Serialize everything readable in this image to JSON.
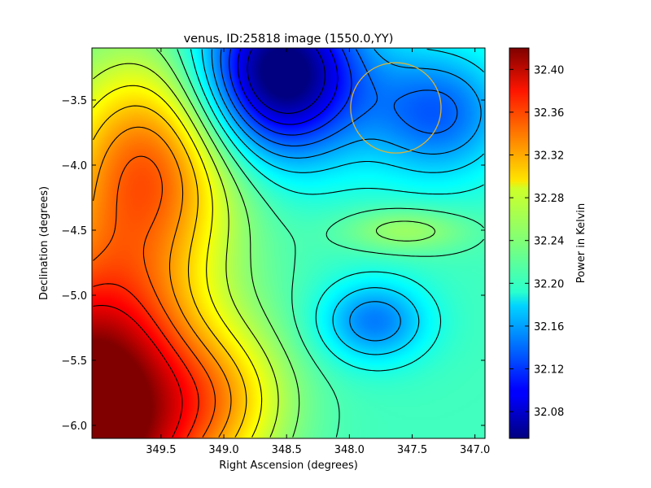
{
  "chart_data": {
    "type": "heatmap",
    "title": "venus, ID:25818 image (1550.0,YY)",
    "xlabel": "Right Ascension (degrees)",
    "ylabel": "Declination (degrees)",
    "xlim": [
      350.05,
      346.92
    ],
    "ylim": [
      -6.1,
      -3.1
    ],
    "x_ticks": [
      {
        "value": 349.5,
        "label": "349.5"
      },
      {
        "value": 349.0,
        "label": "349.0"
      },
      {
        "value": 348.5,
        "label": "348.5"
      },
      {
        "value": 348.0,
        "label": "348.0"
      },
      {
        "value": 347.5,
        "label": "347.5"
      },
      {
        "value": 347.0,
        "label": "347.0"
      }
    ],
    "y_ticks": [
      {
        "value": -3.5,
        "label": "−3.5"
      },
      {
        "value": -4.0,
        "label": "−4.0"
      },
      {
        "value": -4.5,
        "label": "−4.5"
      },
      {
        "value": -5.0,
        "label": "−5.0"
      },
      {
        "value": -5.5,
        "label": "−5.5"
      },
      {
        "value": -6.0,
        "label": "−6.0"
      }
    ],
    "colorbar": {
      "label": "Power in Kelvin",
      "range": [
        32.055,
        32.42
      ],
      "colormap": "jet",
      "ticks": [
        {
          "value": 32.08,
          "label": "32.08"
        },
        {
          "value": 32.12,
          "label": "32.12"
        },
        {
          "value": 32.16,
          "label": "32.16"
        },
        {
          "value": 32.2,
          "label": "32.20"
        },
        {
          "value": 32.24,
          "label": "32.24"
        },
        {
          "value": 32.28,
          "label": "32.28"
        },
        {
          "value": 32.32,
          "label": "32.32"
        },
        {
          "value": 32.36,
          "label": "32.36"
        },
        {
          "value": 32.4,
          "label": "32.40"
        }
      ]
    },
    "field_components": [
      {
        "kind": "base",
        "value": 32.215
      },
      {
        "kind": "gaussian",
        "ra": 350.05,
        "dec": -5.9,
        "amp": 0.25,
        "sigma_ra": 0.6,
        "sigma_dec": 0.8
      },
      {
        "kind": "gaussian",
        "ra": 349.6,
        "dec": -4.0,
        "amp": 0.12,
        "sigma_ra": 0.5,
        "sigma_dec": 0.6
      },
      {
        "kind": "gaussian",
        "ra": 348.55,
        "dec": -3.3,
        "amp": -0.18,
        "sigma_ra": 0.45,
        "sigma_dec": 0.45
      },
      {
        "kind": "gaussian",
        "ra": 347.8,
        "dec": -5.2,
        "amp": -0.07,
        "sigma_ra": 0.3,
        "sigma_dec": 0.22
      },
      {
        "kind": "gaussian",
        "ra": 347.55,
        "dec": -4.5,
        "amp": 0.035,
        "sigma_ra": 0.35,
        "sigma_dec": 0.12
      },
      {
        "kind": "gaussian",
        "ra": 347.3,
        "dec": -3.6,
        "amp": -0.08,
        "sigma_ra": 0.4,
        "sigma_dec": 0.35
      },
      {
        "kind": "gaussian",
        "ra": 349.0,
        "dec": -5.8,
        "amp": 0.06,
        "sigma_ra": 0.4,
        "sigma_dec": 0.4
      }
    ],
    "contour_levels": [
      32.08,
      32.1,
      32.12,
      32.14,
      32.16,
      32.18,
      32.2,
      32.22,
      32.24,
      32.26,
      32.28,
      32.3,
      32.32,
      32.34,
      32.36,
      32.38
    ],
    "annotations": [
      {
        "kind": "circle",
        "ra": 347.63,
        "dec": -3.56,
        "radius_deg": 0.36,
        "color": "#d4b43c"
      }
    ],
    "grid": false,
    "legend": "none"
  }
}
